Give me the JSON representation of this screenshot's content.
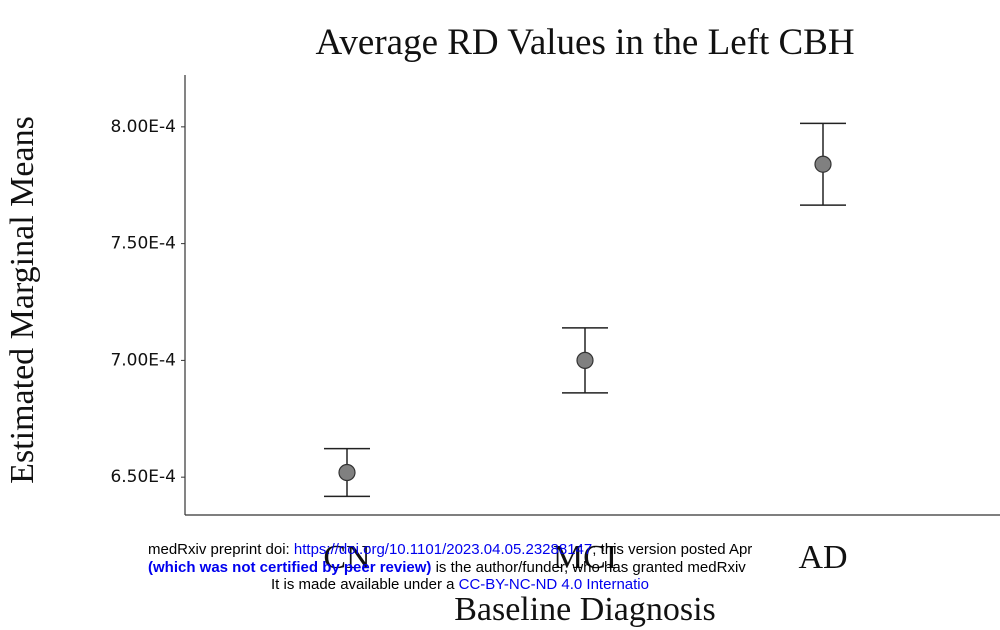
{
  "chart_data": {
    "type": "errorbar",
    "title": "Average RD Values in the Left CBH",
    "x_label": "Baseline Diagnosis",
    "y_label": "Estimated Marginal Means",
    "categories": [
      "CN",
      "MCI",
      "AD"
    ],
    "values": [
      0.000652,
      0.0007,
      0.000784
    ],
    "errors": [
      1.02e-05,
      1.39e-05,
      1.75e-05
    ],
    "color": "#808080",
    "ylim": [
      0.0006338,
      0.0008222
    ],
    "yticks": [
      {
        "value": 0.00065,
        "label": "6.50E-4"
      },
      {
        "value": 0.0007,
        "label": "7.00E-4"
      },
      {
        "value": 0.00075,
        "label": "7.50E-4"
      },
      {
        "value": 0.0008,
        "label": "8.00E-4"
      }
    ],
    "grid": false
  },
  "watermark": {
    "line1": [
      "medRxiv preprint doi: ",
      "https://doi.org/10.1101/2023.04.05.23288147",
      "; this version posted Apr"
    ],
    "line2": [
      "(which was not certified by peer review)",
      " is the author/funder, who has granted medRxiv"
    ],
    "line3": [
      "It is made available under a ",
      "CC-BY-NC-ND 4.0 Internatio"
    ]
  }
}
